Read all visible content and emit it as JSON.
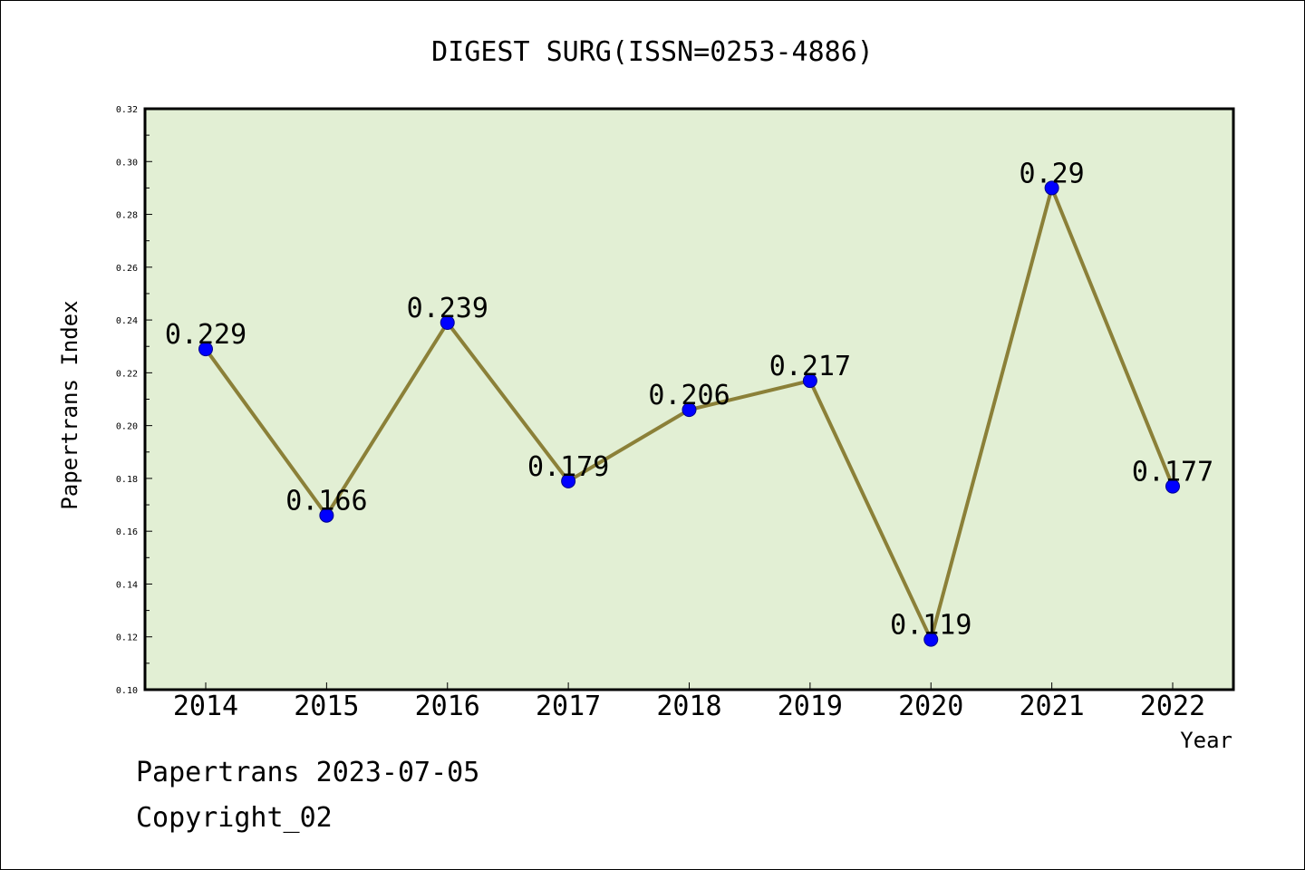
{
  "chart_data": {
    "type": "line",
    "title": "DIGEST SURG(ISSN=0253-4886)",
    "xlabel": "Year",
    "ylabel": "Papertrans Index",
    "categories": [
      "2014",
      "2015",
      "2016",
      "2017",
      "2018",
      "2019",
      "2020",
      "2021",
      "2022"
    ],
    "series": [
      {
        "values": [
          0.229,
          0.166,
          0.239,
          0.179,
          0.206,
          0.217,
          0.119,
          0.29,
          0.177
        ],
        "labels": [
          "0.229",
          "0.166",
          "0.239",
          "0.179",
          "0.206",
          "0.217",
          "0.119",
          "0.29",
          "0.177"
        ]
      }
    ],
    "ylim": [
      0.1,
      0.32
    ],
    "yticks": [
      "0.10",
      "0.12",
      "0.14",
      "0.16",
      "0.18",
      "0.20",
      "0.22",
      "0.24",
      "0.26",
      "0.28",
      "0.30",
      "0.32"
    ],
    "grid": false,
    "colors": {
      "plot_background": "#e2efd4",
      "line": "#8b8038",
      "marker": "#0000ff"
    }
  },
  "footer": {
    "line1": "Papertrans 2023-07-05",
    "line2": "Copyright_02"
  }
}
